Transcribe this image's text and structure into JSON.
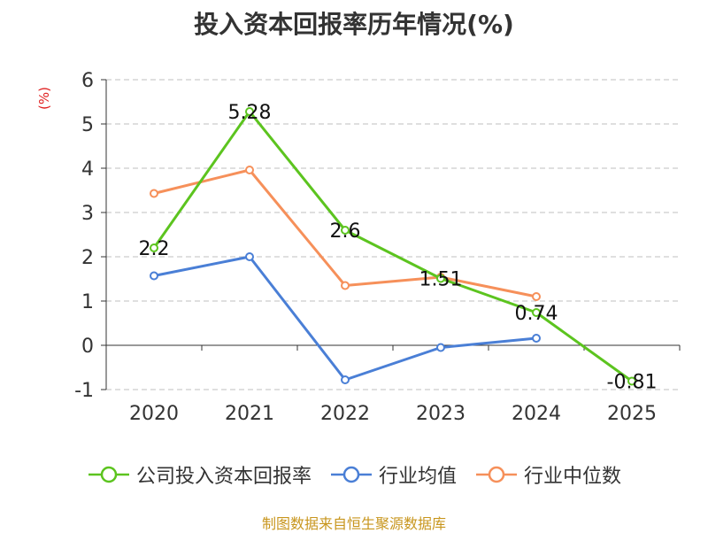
{
  "chart_data": {
    "type": "line",
    "title": "投入资本回报率历年情况(%)",
    "ylabel": "(%)",
    "categories": [
      "2020",
      "2021",
      "2022",
      "2023",
      "2024",
      "2025"
    ],
    "yticks": [
      "-1",
      "0",
      "1",
      "2",
      "3",
      "4",
      "5",
      "6"
    ],
    "ylim": [
      -1,
      6
    ],
    "grid": true,
    "legend_position": "bottom",
    "series": [
      {
        "name": "公司投入资本回报率",
        "color": "#5cc41f",
        "values": [
          2.2,
          5.28,
          2.6,
          1.51,
          0.74,
          -0.81
        ],
        "labels": [
          "2.2",
          "5.28",
          "2.6",
          "1.51",
          "0.74",
          "-0.81"
        ]
      },
      {
        "name": "行业均值",
        "color": "#4a7fd6",
        "values": [
          1.57,
          2.0,
          -0.78,
          -0.05,
          0.16,
          null
        ]
      },
      {
        "name": "行业中位数",
        "color": "#f6905a",
        "values": [
          3.43,
          3.96,
          1.35,
          1.54,
          1.1,
          null
        ]
      }
    ]
  },
  "source": "制图数据来自恒生聚源数据库"
}
